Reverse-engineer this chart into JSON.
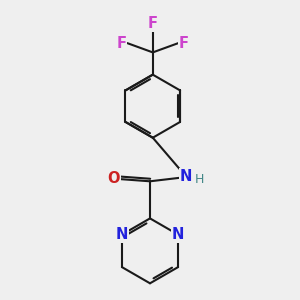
{
  "background_color": "#efefef",
  "bond_color": "#1a1a1a",
  "bond_width": 1.5,
  "atom_colors": {
    "F": "#cc44cc",
    "N": "#2222dd",
    "O": "#cc2222",
    "teal": "#448888"
  },
  "font_size": 10.5,
  "font_size_h": 9,
  "ring_r": 0.68,
  "pyr_r": 0.7
}
